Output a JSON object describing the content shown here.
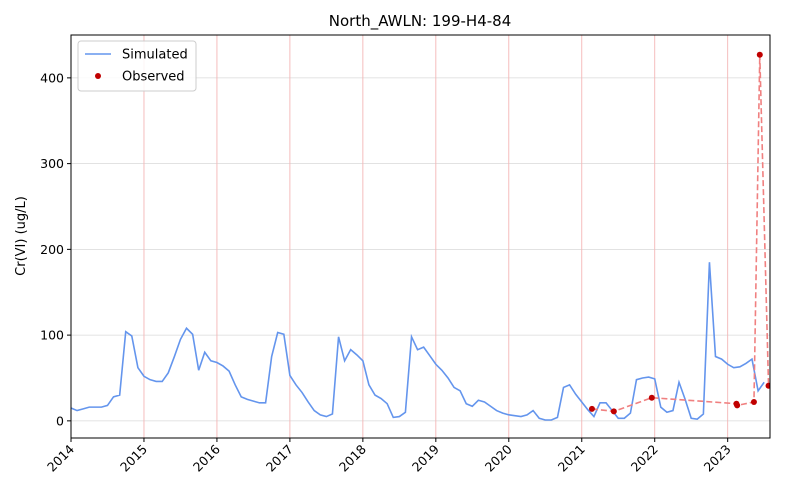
{
  "chart_data": {
    "type": "line",
    "title": "North_AWLN: 199-H4-84",
    "ylabel": "Cr(VI) (ug/L)",
    "xlim": [
      2014,
      2023.58
    ],
    "xticks": [
      2014,
      2015,
      2016,
      2017,
      2018,
      2019,
      2020,
      2021,
      2022,
      2023
    ],
    "ylim": [
      -20,
      450
    ],
    "yticks": [
      0,
      100,
      200,
      300,
      400
    ],
    "grid": true,
    "legend": "upper left",
    "series": [
      {
        "name": "Simulated",
        "color": "#6495ed",
        "style": "line",
        "x": [
          2014,
          2014.083,
          2014.167,
          2014.25,
          2014.333,
          2014.417,
          2014.5,
          2014.583,
          2014.667,
          2014.75,
          2014.833,
          2014.917,
          2015,
          2015.083,
          2015.167,
          2015.25,
          2015.333,
          2015.417,
          2015.5,
          2015.583,
          2015.667,
          2015.75,
          2015.833,
          2015.917,
          2016,
          2016.083,
          2016.167,
          2016.25,
          2016.333,
          2016.417,
          2016.5,
          2016.583,
          2016.667,
          2016.75,
          2016.833,
          2016.917,
          2017,
          2017.083,
          2017.167,
          2017.25,
          2017.333,
          2017.417,
          2017.5,
          2017.583,
          2017.667,
          2017.75,
          2017.833,
          2017.917,
          2018,
          2018.083,
          2018.167,
          2018.25,
          2018.333,
          2018.417,
          2018.5,
          2018.583,
          2018.667,
          2018.75,
          2018.833,
          2018.917,
          2019,
          2019.083,
          2019.167,
          2019.25,
          2019.333,
          2019.417,
          2019.5,
          2019.583,
          2019.667,
          2019.75,
          2019.833,
          2019.917,
          2020,
          2020.083,
          2020.167,
          2020.25,
          2020.333,
          2020.417,
          2020.5,
          2020.583,
          2020.667,
          2020.75,
          2020.833,
          2020.917,
          2021,
          2021.083,
          2021.167,
          2021.25,
          2021.333,
          2021.417,
          2021.5,
          2021.583,
          2021.667,
          2021.75,
          2021.833,
          2021.917,
          2022,
          2022.083,
          2022.167,
          2022.25,
          2022.333,
          2022.417,
          2022.5,
          2022.583,
          2022.667,
          2022.75,
          2022.833,
          2022.917,
          2023,
          2023.083,
          2023.167,
          2023.25,
          2023.333,
          2023.417,
          2023.5
        ],
        "values": [
          15,
          12,
          14,
          16,
          16,
          16,
          18,
          28,
          30,
          104,
          99,
          62,
          52,
          48,
          46,
          46,
          56,
          75,
          95,
          108,
          101,
          59,
          80,
          70,
          68,
          64,
          58,
          42,
          28,
          25,
          23,
          21,
          21,
          75,
          103,
          101,
          53,
          42,
          33,
          22,
          12,
          7,
          5,
          8,
          98,
          70,
          83,
          77,
          70,
          42,
          30,
          26,
          20,
          4,
          5,
          10,
          98,
          83,
          86,
          76,
          66,
          59,
          50,
          39,
          35,
          20,
          17,
          24,
          22,
          17,
          12,
          9,
          7,
          6,
          5,
          7,
          12,
          3,
          1,
          1,
          4,
          39,
          42,
          31,
          22,
          13,
          5,
          21,
          21,
          12,
          3,
          3,
          9,
          48,
          50,
          51,
          49,
          16,
          10,
          12,
          45,
          25,
          3,
          2,
          8,
          185,
          75,
          72,
          66,
          62,
          63,
          67,
          72,
          35,
          45
        ]
      },
      {
        "name": "Observed",
        "color": "#c00000",
        "line_color": "#f08080",
        "style": "points",
        "x": [
          2021.14,
          2021.44,
          2021.96,
          2023.12,
          2023.13,
          2023.36,
          2023.44,
          2023.56
        ],
        "values": [
          14,
          11,
          27,
          20,
          18,
          22,
          427,
          41
        ]
      }
    ]
  }
}
